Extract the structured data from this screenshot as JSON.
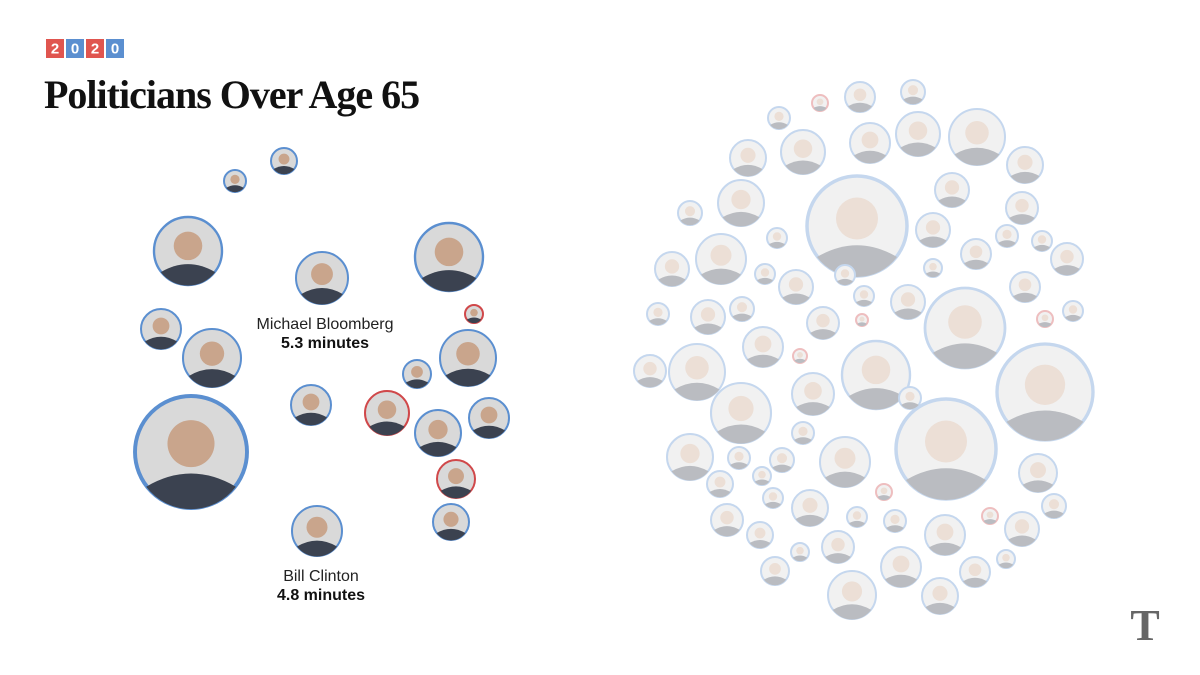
{
  "header": {
    "badge": [
      "2",
      "0",
      "2",
      "0"
    ],
    "title": "Politicians Over Age 65"
  },
  "annotations": [
    {
      "name": "Michael Bloomberg",
      "value": "5.3 minutes"
    },
    {
      "name": "Bill Clinton",
      "value": "4.8 minutes"
    }
  ],
  "logo": "T"
}
